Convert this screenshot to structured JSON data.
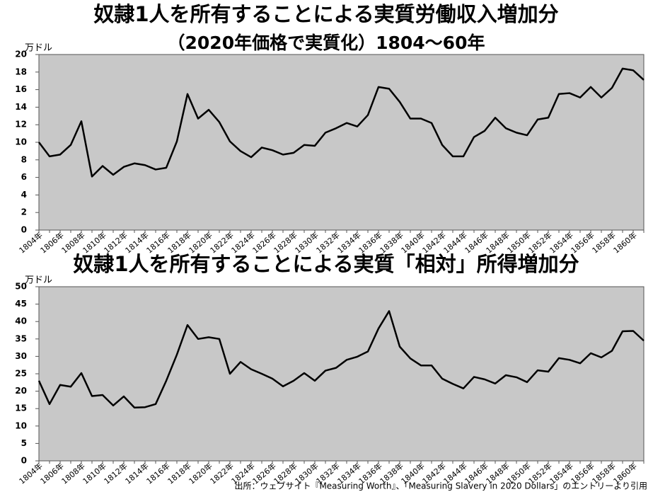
{
  "chart_data": [
    {
      "type": "line",
      "title": "奴隷1人を所有することによる実質労働収入増加分",
      "subtitle": "（2020年価格で実質化）1804～60年",
      "y_unit": "万ドル",
      "categories": [
        "1804年",
        null,
        "1806年",
        null,
        "1808年",
        null,
        "1810年",
        null,
        "1812年",
        null,
        "1814年",
        null,
        "1816年",
        null,
        "1818年",
        null,
        "1820年",
        null,
        "1822年",
        null,
        "1824年",
        null,
        "1826年",
        null,
        "1828年",
        null,
        "1830年",
        null,
        "1832年",
        null,
        "1834年",
        null,
        "1836年",
        null,
        "1838年",
        null,
        "1840年",
        null,
        "1842年",
        null,
        "1844年",
        null,
        "1846年",
        null,
        "1848年",
        null,
        "1850年",
        null,
        "1852年",
        null,
        "1854年",
        null,
        "1856年",
        null,
        "1858年",
        null,
        "1860年",
        null
      ],
      "series": [
        {
          "color": "#000000",
          "values": [
            10.0,
            8.4,
            8.6,
            9.7,
            12.4,
            6.1,
            7.3,
            6.3,
            7.2,
            7.6,
            7.4,
            6.9,
            7.1,
            10.1,
            15.5,
            12.7,
            13.7,
            12.3,
            10.1,
            9.0,
            8.3,
            9.4,
            9.1,
            8.6,
            8.8,
            9.7,
            9.6,
            11.1,
            11.6,
            12.2,
            11.8,
            13.1,
            16.3,
            16.1,
            14.6,
            12.7,
            12.7,
            12.2,
            9.7,
            8.4,
            8.4,
            10.6,
            11.3,
            12.8,
            11.6,
            11.1,
            10.8,
            12.6,
            12.8,
            15.5,
            15.6,
            15.1,
            16.3,
            15.1,
            16.2,
            18.4,
            18.2,
            17.1
          ]
        }
      ],
      "ylim": [
        0,
        20
      ],
      "yticks": [
        0,
        2,
        4,
        6,
        8,
        10,
        12,
        14,
        16,
        18,
        20
      ],
      "grid": false,
      "plot_background": "#c8c8c8"
    },
    {
      "type": "line",
      "title": "奴隷1人を所有することによる実質「相対」所得増加分",
      "y_unit": "万ドル",
      "categories": [
        "1804年",
        null,
        "1806年",
        null,
        "1808年",
        null,
        "1810年",
        null,
        "1812年",
        null,
        "1814年",
        null,
        "1816年",
        null,
        "1818年",
        null,
        "1820年",
        null,
        "1822年",
        null,
        "1824年",
        null,
        "1826年",
        null,
        "1828年",
        null,
        "1830年",
        null,
        "1832年",
        null,
        "1834年",
        null,
        "1836年",
        null,
        "1838年",
        null,
        "1840年",
        null,
        "1842年",
        null,
        "1844年",
        null,
        "1846年",
        null,
        "1848年",
        null,
        "1850年",
        null,
        "1852年",
        null,
        "1854年",
        null,
        "1856年",
        null,
        "1858年",
        null,
        "1860年",
        null
      ],
      "series": [
        {
          "color": "#000000",
          "values": [
            23.0,
            16.3,
            21.8,
            21.3,
            25.2,
            18.6,
            18.9,
            15.9,
            18.5,
            15.3,
            15.4,
            16.3,
            23.0,
            30.5,
            39.0,
            35.0,
            35.5,
            35.0,
            25.0,
            28.4,
            26.3,
            25.0,
            23.6,
            21.4,
            23.0,
            25.2,
            23.0,
            25.9,
            26.7,
            29.0,
            29.9,
            31.4,
            38.0,
            43.0,
            32.8,
            29.4,
            27.4,
            27.4,
            23.6,
            22.1,
            20.8,
            24.1,
            23.4,
            22.2,
            24.6,
            24.0,
            22.6,
            26.0,
            25.6,
            29.5,
            29.0,
            28.0,
            30.9,
            29.7,
            31.6,
            37.2,
            37.3,
            34.5
          ]
        }
      ],
      "ylim": [
        0,
        50
      ],
      "yticks": [
        0,
        5,
        10,
        15,
        20,
        25,
        30,
        35,
        40,
        45,
        50
      ],
      "grid": false,
      "plot_background": "#c8c8c8"
    }
  ],
  "source": "出所：ウェブサイト『Measuring Worth』、「Measuring Slavery in 2020 Dollars」のエントリーより引用"
}
